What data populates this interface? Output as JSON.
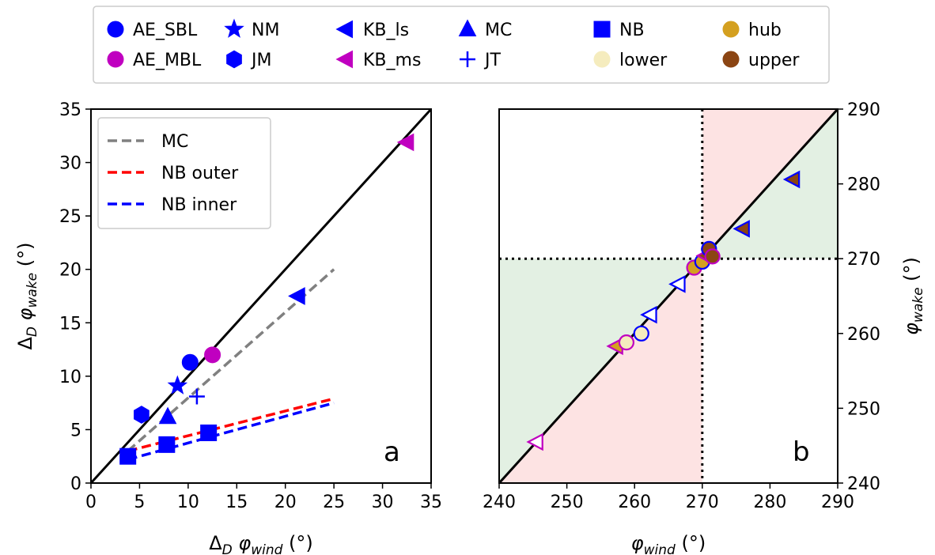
{
  "chart_data": [
    {
      "type": "scatter",
      "panel_label": "a",
      "xlabel": "Δ_D φ_wind (°)",
      "ylabel": "Δ_D φ_wake (°)",
      "xlim": [
        0,
        35
      ],
      "ylim": [
        0,
        35
      ],
      "xticks": [
        0,
        5,
        10,
        15,
        20,
        25,
        30,
        35
      ],
      "yticks": [
        0,
        5,
        10,
        15,
        20,
        25,
        30,
        35
      ],
      "grid": false,
      "legend_position": "top-left",
      "reference_line": {
        "from": [
          0,
          0
        ],
        "to": [
          35,
          35
        ],
        "color": "#000000"
      },
      "fit_lines": [
        {
          "name": "MC",
          "color": "#808080",
          "points": [
            [
              3.8,
              3.0
            ],
            [
              25,
              20
            ]
          ]
        },
        {
          "name": "NB outer",
          "color": "#ff0000",
          "points": [
            [
              3.8,
              3.0
            ],
            [
              25,
              7.9
            ]
          ]
        },
        {
          "name": "NB inner",
          "color": "#0000ff",
          "points": [
            [
              3.8,
              2.2
            ],
            [
              25,
              7.5
            ]
          ]
        }
      ],
      "series": [
        {
          "name": "AE_SBL",
          "marker": "circle",
          "color": "#0000ff",
          "x": [
            10.2
          ],
          "y": [
            11.3
          ]
        },
        {
          "name": "AE_MBL",
          "marker": "circle",
          "color": "#c000c0",
          "x": [
            12.5
          ],
          "y": [
            12.0
          ]
        },
        {
          "name": "NM",
          "marker": "star",
          "color": "#0000ff",
          "x": [
            8.9
          ],
          "y": [
            9.1
          ]
        },
        {
          "name": "JM",
          "marker": "hexagon",
          "color": "#0000ff",
          "x": [
            5.2
          ],
          "y": [
            6.4
          ]
        },
        {
          "name": "KB_ls",
          "marker": "triangle-left",
          "color": "#0000ff",
          "x": [
            21.3
          ],
          "y": [
            17.5
          ]
        },
        {
          "name": "KB_ms",
          "marker": "triangle-left",
          "color": "#c000c0",
          "x": [
            32.5
          ],
          "y": [
            31.9
          ]
        },
        {
          "name": "MC",
          "marker": "triangle-up",
          "color": "#0000ff",
          "x": [
            7.9
          ],
          "y": [
            6.2
          ]
        },
        {
          "name": "JT",
          "marker": "plus",
          "color": "#0000ff",
          "x": [
            10.9
          ],
          "y": [
            8.1
          ]
        },
        {
          "name": "NB",
          "marker": "square",
          "color": "#0000ff",
          "x": [
            3.8,
            7.8,
            12.1
          ],
          "y": [
            2.5,
            3.6,
            4.7
          ]
        }
      ]
    },
    {
      "type": "scatter",
      "panel_label": "b",
      "xlabel": "φ_wind (°)",
      "ylabel": "φ_wake (°)",
      "xlim": [
        240,
        290
      ],
      "ylim": [
        240,
        290
      ],
      "xticks": [
        240,
        250,
        260,
        270,
        280,
        290
      ],
      "yticks": [
        240,
        250,
        260,
        270,
        280,
        290
      ],
      "yaxis_side": "right",
      "grid": false,
      "shading": {
        "green": "#e3f0e3",
        "red": "#fde3e3"
      },
      "reference_line": {
        "from": [
          240,
          240
        ],
        "to": [
          290,
          290
        ],
        "color": "#000000"
      },
      "dotted_lines": {
        "x": 270,
        "y": 270
      },
      "points": [
        {
          "marker": "triangle-left",
          "fill": "#ffffff",
          "edge": "#c000c0",
          "x": 245.5,
          "y": 245.5
        },
        {
          "marker": "triangle-left",
          "fill": "#d4a020",
          "edge": "#c000c0",
          "x": 257.3,
          "y": 258.3
        },
        {
          "marker": "circle",
          "fill": "#f5ecbe",
          "edge": "#c000c0",
          "x": 258.8,
          "y": 258.8
        },
        {
          "marker": "circle",
          "fill": "#f5ecbe",
          "edge": "#0000ff",
          "x": 261.0,
          "y": 260.0
        },
        {
          "marker": "triangle-left",
          "fill": "#ffffff",
          "edge": "#0000ff",
          "x": 262.3,
          "y": 262.5
        },
        {
          "marker": "triangle-left",
          "fill": "#ffffff",
          "edge": "#0000ff",
          "x": 266.5,
          "y": 266.6
        },
        {
          "marker": "circle",
          "fill": "#d4a020",
          "edge": "#c000c0",
          "x": 268.8,
          "y": 268.8
        },
        {
          "marker": "circle",
          "fill": "#d4a020",
          "edge": "#0000ff",
          "x": 270.0,
          "y": 269.6
        },
        {
          "marker": "triangle-left",
          "fill": "#8b4513",
          "edge": "#c000c0",
          "x": 270.5,
          "y": 270.4
        },
        {
          "marker": "circle",
          "fill": "#8b4513",
          "edge": "#0000ff",
          "x": 271.0,
          "y": 271.3
        },
        {
          "marker": "circle",
          "fill": "#8b4513",
          "edge": "#c000c0",
          "x": 271.5,
          "y": 270.3
        },
        {
          "marker": "triangle-left",
          "fill": "#8b4513",
          "edge": "#0000ff",
          "x": 276.0,
          "y": 274.0
        },
        {
          "marker": "triangle-left",
          "fill": "#8b4513",
          "edge": "#0000ff",
          "x": 283.4,
          "y": 280.6
        }
      ]
    }
  ],
  "legend_top": [
    {
      "label": "AE_SBL",
      "marker": "circle",
      "color": "#0000ff"
    },
    {
      "label": "AE_MBL",
      "marker": "circle",
      "color": "#c000c0"
    },
    {
      "label": "NM",
      "marker": "star",
      "color": "#0000ff"
    },
    {
      "label": "JM",
      "marker": "hexagon",
      "color": "#0000ff"
    },
    {
      "label": "KB_ls",
      "marker": "triangle-left",
      "color": "#0000ff"
    },
    {
      "label": "KB_ms",
      "marker": "triangle-left",
      "color": "#c000c0"
    },
    {
      "label": "MC",
      "marker": "triangle-up",
      "color": "#0000ff"
    },
    {
      "label": "JT",
      "marker": "plus",
      "color": "#0000ff"
    },
    {
      "label": "NB",
      "marker": "square",
      "color": "#0000ff"
    },
    {
      "label": "lower",
      "marker": "circle",
      "color": "#f5ecbe"
    },
    {
      "label": "hub",
      "marker": "circle",
      "color": "#d4a020"
    },
    {
      "label": "upper",
      "marker": "circle",
      "color": "#8b4513"
    }
  ],
  "legend_a": [
    {
      "label": "MC",
      "color": "#808080"
    },
    {
      "label": "NB outer",
      "color": "#ff0000"
    },
    {
      "label": "NB inner",
      "color": "#0000ff"
    }
  ]
}
